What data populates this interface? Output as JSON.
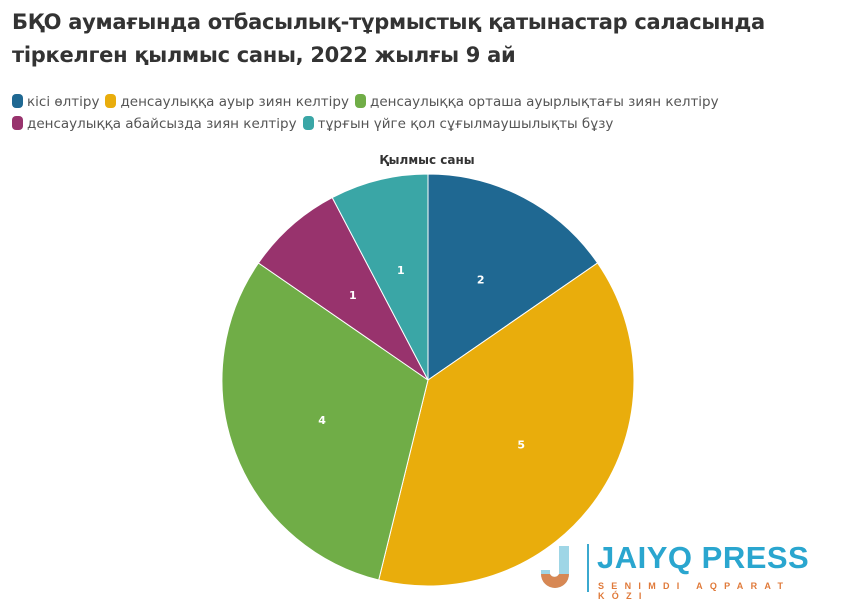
{
  "chart_data": {
    "type": "pie",
    "title": "БҚО аумағында отбасылық-тұрмыстық қатынастар саласында тіркелген қылмыс саны, 2022 жылғы 9 ай",
    "subtitle": "Қылмыс саны",
    "legend_position": "top",
    "start_angle": "top, clockwise",
    "series": [
      {
        "name": "кісі өлтіру",
        "value": 2,
        "color": "#1f6892"
      },
      {
        "name": "денсаулыққа ауыр зиян келтіру",
        "value": 5,
        "color": "#e9ad0c"
      },
      {
        "name": "денсаулыққа орташа ауырлықтағы зиян келтіру",
        "value": 4,
        "color": "#70ad47"
      },
      {
        "name": "денсаулыққа абайсызда зиян келтіру",
        "value": 1,
        "color": "#98336d"
      },
      {
        "name": "тұрғын үйге қол сұғылмаушылықты бұзу",
        "value": 1,
        "color": "#3aa6a6"
      }
    ]
  },
  "logo": {
    "name": "JAIYQ PRESS",
    "tagline": "SENIMDI AQPARAT KÓZI"
  }
}
